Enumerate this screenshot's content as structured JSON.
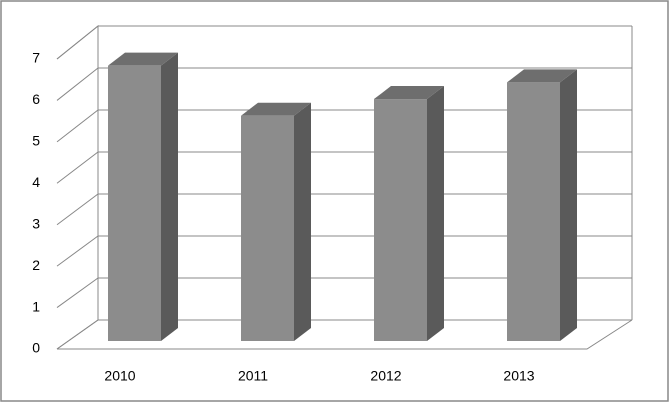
{
  "chart_data": {
    "type": "bar3d",
    "categories": [
      "2010",
      "2011",
      "2012",
      "2013"
    ],
    "values": [
      6.6,
      5.4,
      5.8,
      6.2
    ],
    "color": "#8c8c8c",
    "ylim": [
      0,
      7
    ],
    "yticks": [
      0,
      1,
      2,
      3,
      4,
      5,
      6,
      7
    ],
    "grid": true
  }
}
